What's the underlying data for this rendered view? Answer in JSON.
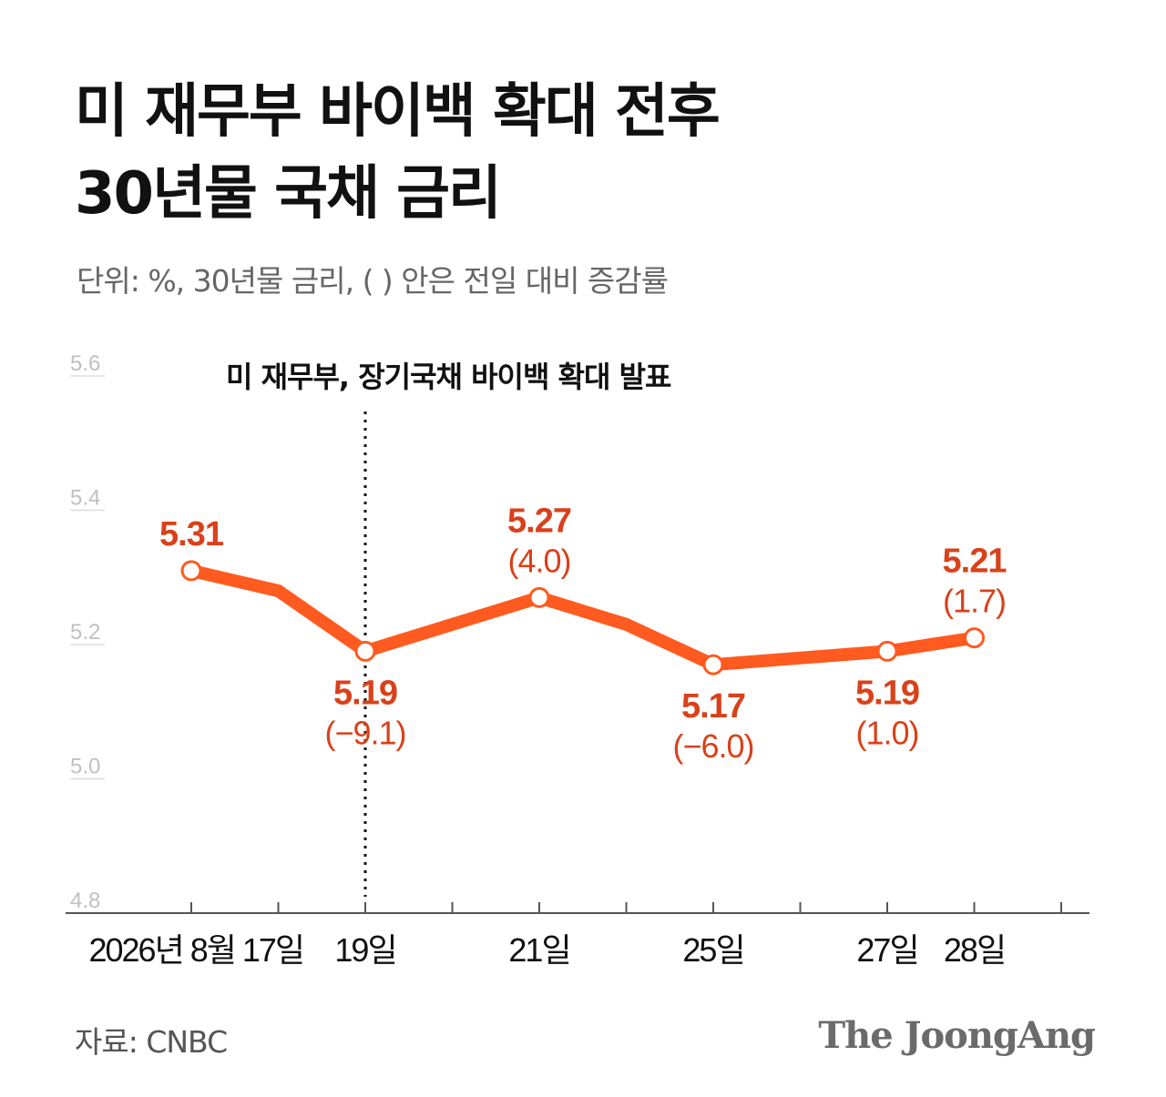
{
  "header": {
    "title_line1": "미 재무부 바이백 확대 전후",
    "title_line2": "30년물 국채 금리",
    "subtitle": "단위: %, 30년물 금리, ( ) 안은 전일 대비 증감률"
  },
  "chart_data": {
    "type": "line",
    "title": "미 재무부 바이백 확대 전후 30년물 국채 금리",
    "ylim": [
      4.8,
      5.6
    ],
    "y_ticks": [
      "4.8",
      "5.0",
      "5.2",
      "5.4",
      "5.6"
    ],
    "x_tick_count": 11,
    "x_labels": [
      {
        "tick": 0,
        "label": "2026년 8월 17일"
      },
      {
        "tick": 2,
        "label": "19일"
      },
      {
        "tick": 4,
        "label": "21일"
      },
      {
        "tick": 6,
        "label": "25일"
      },
      {
        "tick": 8,
        "label": "27일"
      },
      {
        "tick": 9,
        "label": "28일"
      }
    ],
    "series": [
      {
        "color": "#ff5a1f",
        "points": [
          {
            "tick": 0,
            "y": 5.31
          },
          {
            "tick": 1,
            "y": 5.28
          },
          {
            "tick": 2,
            "y": 5.19
          },
          {
            "tick": 4,
            "y": 5.27
          },
          {
            "tick": 5,
            "y": 5.23
          },
          {
            "tick": 6,
            "y": 5.17
          },
          {
            "tick": 8,
            "y": 5.19
          },
          {
            "tick": 9,
            "y": 5.21
          }
        ]
      }
    ],
    "annotations": [
      {
        "tick": 0,
        "y": 5.31,
        "value": "5.31",
        "change": "",
        "position": "above"
      },
      {
        "tick": 2,
        "y": 5.19,
        "value": "5.19",
        "change": "(−9.1)",
        "position": "below"
      },
      {
        "tick": 4,
        "y": 5.27,
        "value": "5.27",
        "change": "(4.0)",
        "position": "above"
      },
      {
        "tick": 6,
        "y": 5.17,
        "value": "5.17",
        "change": "(−6.0)",
        "position": "below"
      },
      {
        "tick": 8,
        "y": 5.19,
        "value": "5.19",
        "change": "(1.0)",
        "position": "below"
      },
      {
        "tick": 9,
        "y": 5.21,
        "value": "5.21",
        "change": "(1.7)",
        "position": "above"
      }
    ],
    "event": {
      "tick": 2,
      "label": "미 재무부, 장기국채 바이백 확대 발표"
    },
    "colors": {
      "line": "#ff5a1f",
      "label": "#d9411a",
      "axis": "#555555",
      "grid_label": "#c0c0c0"
    }
  },
  "footer": {
    "source": "자료: CNBC",
    "logo": "The JoongAng"
  }
}
